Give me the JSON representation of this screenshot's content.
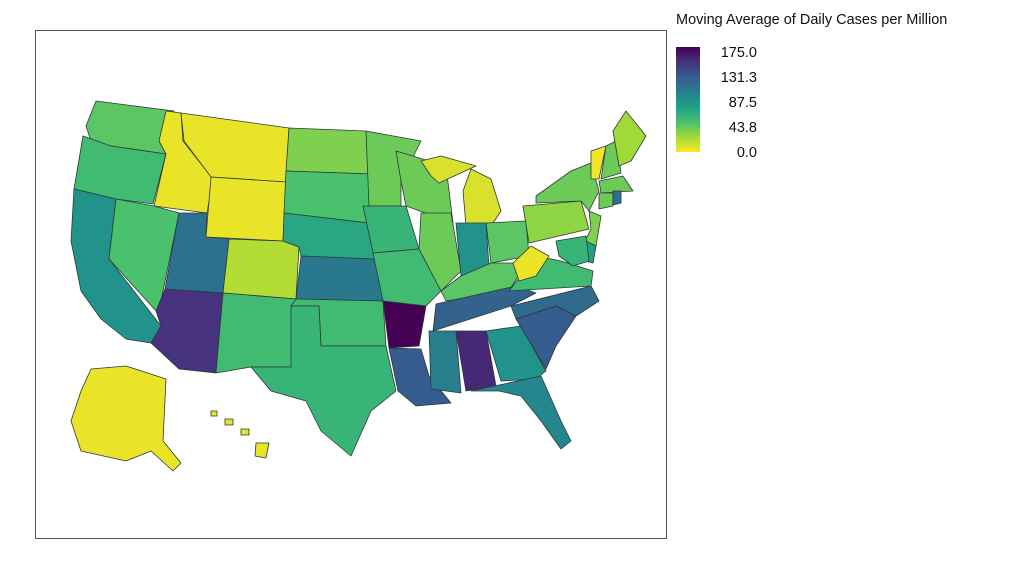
{
  "legend": {
    "title": "Moving Average of Daily Cases per Million",
    "ticks": [
      "175.0",
      "131.3",
      "87.5",
      "43.8",
      "0.0"
    ],
    "min": 0,
    "max": 175,
    "colorscale": [
      "#fde725",
      "#a0da39",
      "#4ac16d",
      "#1fa187",
      "#277f8e",
      "#365c8d",
      "#46327e",
      "#440154"
    ]
  },
  "states": [
    {
      "name": "WA",
      "value": 45
    },
    {
      "name": "OR",
      "value": 55
    },
    {
      "name": "CA",
      "value": 85
    },
    {
      "name": "NV",
      "value": 50
    },
    {
      "name": "ID",
      "value": 5
    },
    {
      "name": "MT",
      "value": 5
    },
    {
      "name": "WY",
      "value": 5
    },
    {
      "name": "UT",
      "value": 110
    },
    {
      "name": "AZ",
      "value": 150
    },
    {
      "name": "CO",
      "value": 20
    },
    {
      "name": "NM",
      "value": 55
    },
    {
      "name": "ND",
      "value": 35
    },
    {
      "name": "SD",
      "value": 50
    },
    {
      "name": "NE",
      "value": 70
    },
    {
      "name": "KS",
      "value": 105
    },
    {
      "name": "OK",
      "value": 55
    },
    {
      "name": "TX",
      "value": 60
    },
    {
      "name": "MN",
      "value": 40
    },
    {
      "name": "IA",
      "value": 60
    },
    {
      "name": "MO",
      "value": 55
    },
    {
      "name": "AR",
      "value": 175
    },
    {
      "name": "LA",
      "value": 125
    },
    {
      "name": "WI",
      "value": 40
    },
    {
      "name": "IL",
      "value": 40
    },
    {
      "name": "MI",
      "value": 10
    },
    {
      "name": "IN",
      "value": 85
    },
    {
      "name": "OH",
      "value": 45
    },
    {
      "name": "KY",
      "value": 45
    },
    {
      "name": "TN",
      "value": 120
    },
    {
      "name": "MS",
      "value": 100
    },
    {
      "name": "AL",
      "value": 155
    },
    {
      "name": "GA",
      "value": 85
    },
    {
      "name": "FL",
      "value": 95
    },
    {
      "name": "SC",
      "value": 125
    },
    {
      "name": "NC",
      "value": 115
    },
    {
      "name": "VA",
      "value": 55
    },
    {
      "name": "WV",
      "value": 5
    },
    {
      "name": "PA",
      "value": 30
    },
    {
      "name": "NY",
      "value": 40
    },
    {
      "name": "VT",
      "value": 3
    },
    {
      "name": "NH",
      "value": 40
    },
    {
      "name": "ME",
      "value": 25
    },
    {
      "name": "MA",
      "value": 40
    },
    {
      "name": "CT",
      "value": 40
    },
    {
      "name": "RI",
      "value": 110
    },
    {
      "name": "NJ",
      "value": 35
    },
    {
      "name": "DE",
      "value": 75
    },
    {
      "name": "MD",
      "value": 60
    },
    {
      "name": "AK",
      "value": 5
    },
    {
      "name": "HI",
      "value": 5
    }
  ]
}
